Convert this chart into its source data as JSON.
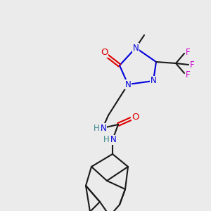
{
  "background_color": "#ebebeb",
  "atom_colors": {
    "C": "#1a1a1a",
    "N": "#0000dd",
    "O": "#dd0000",
    "F": "#cc00cc",
    "H": "#3a8a8a"
  },
  "figsize": [
    3.0,
    3.0
  ],
  "dpi": 100,
  "bond_lw": 1.5,
  "font_size": 8.5
}
